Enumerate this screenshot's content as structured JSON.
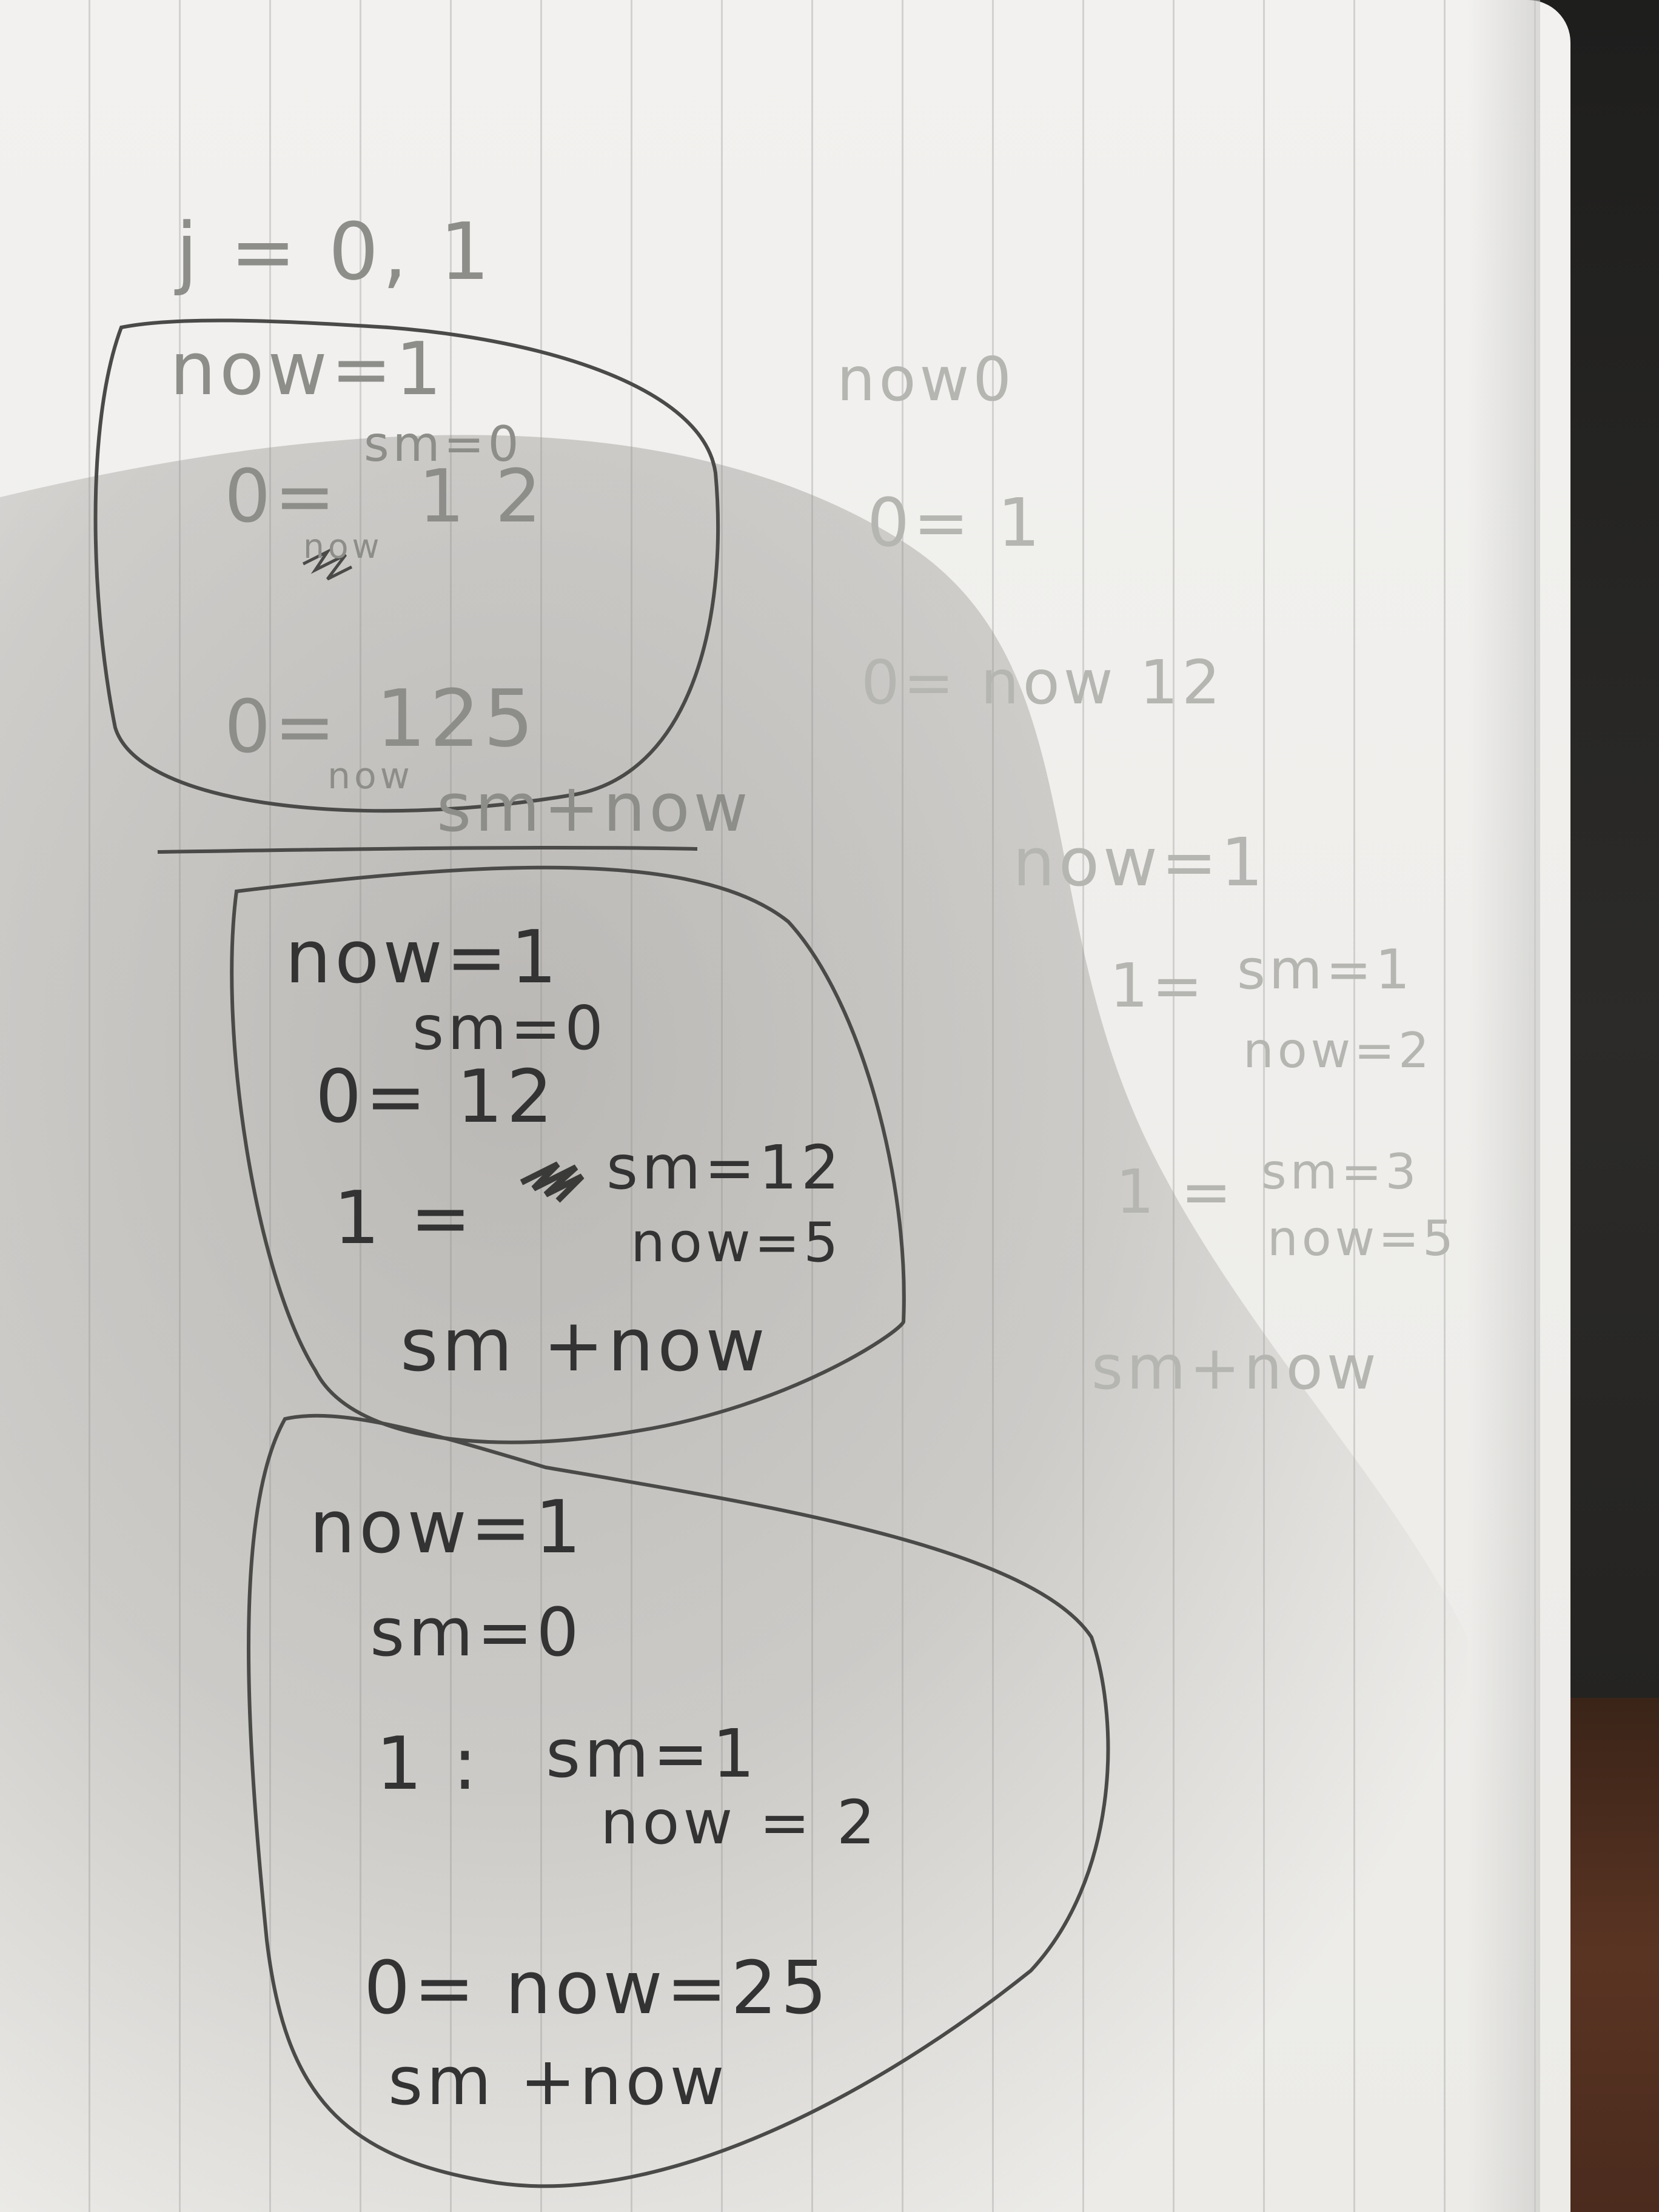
{
  "notes": {
    "header": "j = 0, 1",
    "block1": {
      "now": "now=1",
      "sm": "sm=0",
      "row1_lhs": "0=",
      "row1_rhs": "1 2",
      "row1_note": "now",
      "row2_lhs": "0=",
      "row2_rhs": "125",
      "row2_note_now": "now",
      "row2_note_sm": "sm+now"
    },
    "block2": {
      "now": "now=1",
      "sm": "sm=0",
      "row1": "0= 12",
      "row2_lhs": "1 =",
      "row2_sm": "sm=12",
      "row2_now": "now=5",
      "result": "sm +now"
    },
    "block3": {
      "now": "now=1",
      "sm": "sm=0",
      "row1_lhs": "1 :",
      "row1_sm": "sm=1",
      "row1_now": "now = 2",
      "row2": "0= now=25",
      "result": "sm +now"
    },
    "right_column": {
      "title": "now0",
      "row1": "0= 1",
      "row2": "0= now 12",
      "now": "now=1",
      "row3_lhs": "1=",
      "row3_sm": "sm=1",
      "row3_now": "now=2",
      "row4_lhs": "1 =",
      "row4_sm": "sm=3",
      "row4_now": "now=5",
      "result": "sm+now"
    }
  },
  "colors": {
    "ink": "#333333",
    "ink_light": "#8d8d8a",
    "paper": "#efeeec"
  }
}
